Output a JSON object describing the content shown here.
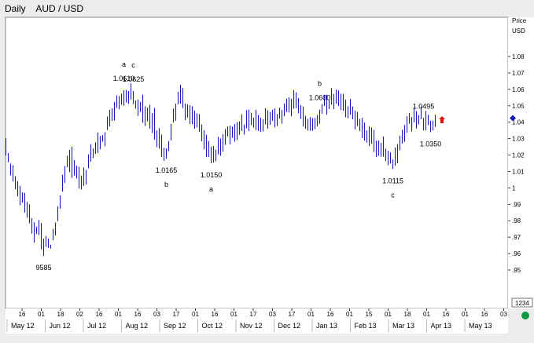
{
  "header": {
    "period": "Daily",
    "symbol": "AUD / USD"
  },
  "chart_data": {
    "type": "ohlc",
    "title": "AUD / USD",
    "timeframe": "Daily",
    "axis": {
      "y_label_line1": "Price",
      "y_label_line2": "USD",
      "ylim": [
        0.95,
        1.08
      ],
      "y_ticks": [
        0.95,
        0.96,
        0.97,
        0.98,
        0.99,
        1.0,
        1.01,
        1.02,
        1.03,
        1.04,
        1.05,
        1.06,
        1.07,
        1.08
      ],
      "y_tick_labels": [
        ".95",
        ".96",
        ".97",
        ".98",
        ".99",
        "1",
        "1.01",
        "1.02",
        "1.03",
        "1.04",
        "1.05",
        "1.06",
        "1.07",
        "1.08"
      ],
      "last_price": 1.0425,
      "day_tick_labels": [
        "16",
        "01",
        "18",
        "02",
        "16",
        "01",
        "16",
        "03",
        "17",
        "01",
        "16",
        "01",
        "17",
        "03",
        "17",
        "01",
        "16",
        "01",
        "15",
        "01",
        "18",
        "01",
        "16",
        "01",
        "16",
        "03"
      ],
      "month_labels": [
        "May 12",
        "Jun 12",
        "Jul 12",
        "Aug 12",
        "Sep 12",
        "Oct 12",
        "Nov 12",
        "Dec 12",
        "Jan 13",
        "Feb 13",
        "Mar 13",
        "Apr 13",
        "May 13"
      ],
      "corner_readout": "1234"
    },
    "series": {
      "highs": [
        1.0302,
        1.0212,
        1.0147,
        1.0138,
        1.0072,
        1.0041,
        1.0012,
        0.9973,
        0.997,
        0.9915,
        0.99,
        0.9816,
        0.979,
        0.9763,
        0.9805,
        0.9786,
        0.9692,
        0.9707,
        0.9691,
        0.9654,
        0.9751,
        0.979,
        0.9887,
        0.9955,
        1.008,
        1.0133,
        1.0195,
        1.0231,
        1.0251,
        1.0169,
        1.0135,
        1.0129,
        1.0075,
        1.0125,
        1.0109,
        1.0204,
        1.0266,
        1.0241,
        1.0278,
        1.0337,
        1.0316,
        1.0322,
        1.0339,
        1.0435,
        1.0475,
        1.0484,
        1.0523,
        1.0563,
        1.0559,
        1.0574,
        1.0595,
        1.0596,
        1.059,
        1.0637,
        1.0589,
        1.0532,
        1.0538,
        1.0524,
        1.0567,
        1.0497,
        1.0489,
        1.0506,
        1.0455,
        1.0487,
        1.035,
        1.0364,
        1.0325,
        1.0244,
        1.0241,
        1.0286,
        1.0389,
        1.0483,
        1.0513,
        1.0585,
        1.0628,
        1.0608,
        1.0513,
        1.0509,
        1.0504,
        1.0497,
        1.047,
        1.0454,
        1.0449,
        1.0386,
        1.0351,
        1.0324,
        1.0286,
        1.0251,
        1.0255,
        1.0233,
        1.031,
        1.03,
        1.0327,
        1.0358,
        1.0374,
        1.038,
        1.0374,
        1.0389,
        1.0401,
        1.0405,
        1.0447,
        1.0385,
        1.0473,
        1.0476,
        1.0457,
        1.0428,
        1.0476,
        1.0443,
        1.0427,
        1.0419,
        1.0485,
        1.0473,
        1.0462,
        1.0477,
        1.0484,
        1.045,
        1.0488,
        1.0475,
        1.0514,
        1.0543,
        1.0552,
        1.0543,
        1.0595,
        1.0582,
        1.0547,
        1.0505,
        1.0496,
        1.044,
        1.042,
        1.0431,
        1.0425,
        1.0426,
        1.0445,
        1.0477,
        1.051,
        1.0567,
        1.0567,
        1.0538,
        1.0607,
        1.0572,
        1.0599,
        1.0594,
        1.0573,
        1.0573,
        1.0538,
        1.0497,
        1.0542,
        1.0496,
        1.0471,
        1.0463,
        1.042,
        1.0426,
        1.0398,
        1.035,
        1.0376,
        1.0368,
        1.0352,
        1.0287,
        1.0289,
        1.0275,
        1.0313,
        1.0239,
        1.0226,
        1.0216,
        1.0173,
        1.0246,
        1.0267,
        1.0318,
        1.0354,
        1.0383,
        1.0436,
        1.0455,
        1.0431,
        1.0488,
        1.0467,
        1.0443,
        1.0495,
        1.0426,
        1.0469,
        1.0445,
        1.0409,
        1.041,
        1.0445
      ],
      "lows": [
        1.0197,
        1.0156,
        1.0077,
        1.0039,
        0.9992,
        0.9949,
        0.9894,
        0.9911,
        0.985,
        0.9818,
        0.9784,
        0.9721,
        0.9667,
        0.9719,
        0.9713,
        0.9626,
        0.9585,
        0.9641,
        0.9634,
        0.963,
        0.9681,
        0.971,
        0.9798,
        0.9873,
        0.9977,
        1.0031,
        1.0126,
        1.0096,
        1.0061,
        1.0075,
        1.0058,
        0.9996,
        0.999,
        1.0013,
        1.0021,
        1.0119,
        1.0159,
        1.0181,
        1.0208,
        1.0212,
        1.0235,
        1.0282,
        1.0253,
        1.0353,
        1.0374,
        1.0407,
        1.0411,
        1.0487,
        1.0478,
        1.0506,
        1.05,
        1.052,
        1.0512,
        1.0538,
        1.051,
        1.0482,
        1.0438,
        1.0462,
        1.0397,
        1.0377,
        1.0405,
        1.0361,
        1.0335,
        1.0293,
        1.0248,
        1.024,
        1.0188,
        1.0165,
        1.0178,
        1.0223,
        1.0289,
        1.0399,
        1.0409,
        1.0509,
        1.0513,
        1.0486,
        1.0413,
        1.0429,
        1.0389,
        1.0388,
        1.036,
        1.0368,
        1.0342,
        1.0284,
        1.0235,
        1.0188,
        1.0188,
        1.015,
        1.0154,
        1.0162,
        1.0204,
        1.0196,
        1.0221,
        1.0262,
        1.0313,
        1.0265,
        1.0305,
        1.0281,
        1.0292,
        1.0323,
        1.0346,
        1.0325,
        1.0363,
        1.0346,
        1.0382,
        1.0367,
        1.0352,
        1.0347,
        1.0341,
        1.0344,
        1.0387,
        1.0361,
        1.0384,
        1.0408,
        1.0368,
        1.0376,
        1.0422,
        1.0391,
        1.0436,
        1.0462,
        1.046,
        1.0436,
        1.0482,
        1.0486,
        1.0454,
        1.042,
        1.0375,
        1.036,
        1.0349,
        1.0348,
        1.0347,
        1.0358,
        1.0374,
        1.0391,
        1.0452,
        1.0499,
        1.0446,
        1.048,
        1.0508,
        1.048,
        1.0513,
        1.0499,
        1.0474,
        1.047,
        1.043,
        1.0424,
        1.0445,
        1.0417,
        1.0356,
        1.0376,
        1.0346,
        1.0303,
        1.0287,
        1.0275,
        1.0255,
        1.0268,
        1.0219,
        1.0189,
        1.0196,
        1.019,
        1.019,
        1.0164,
        1.0138,
        1.0148,
        1.0115,
        1.0135,
        1.015,
        1.0229,
        1.027,
        1.028,
        1.0336,
        1.0391,
        1.0344,
        1.0399,
        1.0362,
        1.0386,
        1.0418,
        1.035,
        1.035,
        1.0382,
        1.0339,
        1.035,
        1.0372
      ],
      "annotations": [
        {
          "label": "a",
          "price_text": "1.0610",
          "bar": 50,
          "placement": "above"
        },
        {
          "label": "c",
          "price_text": "1.0625",
          "bar": 54,
          "placement": "above"
        },
        {
          "label": "b",
          "price_text": "1.0165",
          "bar": 68,
          "placement": "below"
        },
        {
          "label": "a",
          "price_text": "1.0150",
          "bar": 87,
          "placement": "below"
        },
        {
          "label": "b",
          "price_text": "1.0600",
          "bar": 133,
          "placement": "above"
        },
        {
          "label": "c",
          "price_text": "1.0115",
          "bar": 164,
          "placement": "below"
        },
        {
          "label": "",
          "price_text": "1.0495",
          "bar": 177,
          "placement": "above"
        },
        {
          "label": "",
          "price_text": "1.0350",
          "bar": 180,
          "placement": "below"
        },
        {
          "label": "",
          "price_text": "9585",
          "bar": 16,
          "placement": "below"
        }
      ]
    }
  },
  "colors": {
    "bars": "#1a1ab8",
    "arrow": "#dd1111",
    "diamond": "#1a1ab8",
    "status_dot": "#119944"
  }
}
